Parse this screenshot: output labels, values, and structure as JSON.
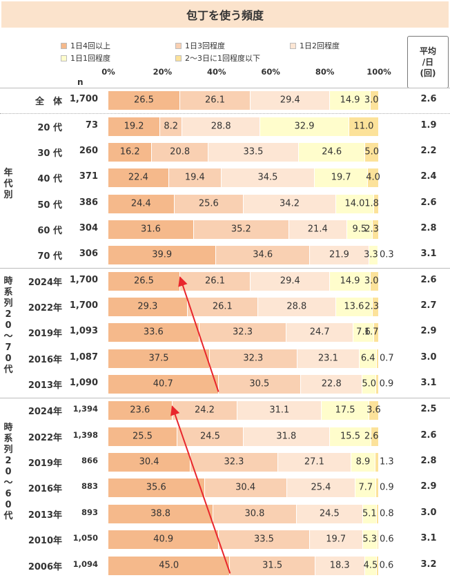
{
  "title": "包丁を使う頻度",
  "legend": [
    {
      "label": "1日4回以上",
      "color": "#f5b98b"
    },
    {
      "label": "1日3回程度",
      "color": "#f9d0b2"
    },
    {
      "label": "1日2回程度",
      "color": "#fde6d4"
    },
    {
      "label": "1日1回程度",
      "color": "#fffdcc"
    },
    {
      "label": "2～3日に1回程度以下",
      "color": "#fce29a"
    }
  ],
  "avg_header": [
    "平均",
    "/日",
    "(回)"
  ],
  "n_header": "n",
  "axis_ticks": [
    "0%",
    "20%",
    "40%",
    "60%",
    "80%",
    "100%"
  ],
  "group_labels": {
    "age": "年代別",
    "ts1": "時系列20～70代",
    "ts2": "時系列20～60代"
  },
  "chart_data": {
    "type": "bar",
    "stacked": true,
    "orientation": "horizontal",
    "title": "包丁を使う頻度",
    "xlim": [
      0,
      100
    ],
    "series_names": [
      "1日4回以上",
      "1日3回程度",
      "1日2回程度",
      "1日1回程度",
      "2～3日に1回程度以下"
    ],
    "rows": [
      {
        "label": "全　体",
        "n": "1,700",
        "values": [
          26.5,
          26.1,
          29.4,
          14.9,
          3.0
        ],
        "labels": [
          "26.5",
          "26.1",
          "29.4",
          "14.9",
          "3.0"
        ],
        "avg": "2.6"
      },
      {
        "label": "20 代",
        "n": "73",
        "values": [
          19.2,
          8.2,
          28.8,
          32.9,
          11.0
        ],
        "labels": [
          "19.2",
          "8.2",
          "28.8",
          "32.9",
          "11.0"
        ],
        "avg": "1.9"
      },
      {
        "label": "30 代",
        "n": "260",
        "values": [
          16.2,
          20.8,
          33.5,
          24.6,
          5.0
        ],
        "labels": [
          "16.2",
          "20.8",
          "33.5",
          "24.6",
          "5.0"
        ],
        "avg": "2.2"
      },
      {
        "label": "40 代",
        "n": "371",
        "values": [
          22.4,
          19.4,
          34.5,
          19.7,
          4.0
        ],
        "labels": [
          "22.4",
          "19.4",
          "34.5",
          "19.7",
          "4.0"
        ],
        "avg": "2.4"
      },
      {
        "label": "50 代",
        "n": "386",
        "values": [
          24.4,
          25.6,
          34.2,
          14.0,
          1.8
        ],
        "labels": [
          "24.4",
          "25.6",
          "34.2",
          "14.0",
          "1.8"
        ],
        "avg": "2.6"
      },
      {
        "label": "60 代",
        "n": "304",
        "values": [
          31.6,
          35.2,
          21.4,
          9.5,
          2.3
        ],
        "labels": [
          "31.6",
          "35.2",
          "21.4",
          "9.5",
          "2.3"
        ],
        "avg": "2.8"
      },
      {
        "label": "70 代",
        "n": "306",
        "values": [
          39.9,
          34.6,
          21.9,
          3.3,
          0.3
        ],
        "labels": [
          "39.9",
          "34.6",
          "21.9",
          "3.3",
          "0.3"
        ],
        "avg": "3.1"
      },
      {
        "label": "2024年",
        "n": "1,700",
        "values": [
          26.5,
          26.1,
          29.4,
          14.9,
          3.0
        ],
        "labels": [
          "26.5",
          "26.1",
          "29.4",
          "14.9",
          "3.0"
        ],
        "avg": "2.6"
      },
      {
        "label": "2022年",
        "n": "1,700",
        "values": [
          29.3,
          26.1,
          28.8,
          13.6,
          2.3
        ],
        "labels": [
          "29.3",
          "26.1",
          "28.8",
          "13.6",
          "2.3"
        ],
        "avg": "2.7"
      },
      {
        "label": "2019年",
        "n": "1,093",
        "values": [
          33.6,
          32.3,
          24.7,
          7.6,
          1.7
        ],
        "labels": [
          "33.6",
          "32.3",
          "24.7",
          "7.6",
          "1.7"
        ],
        "avg": "2.9"
      },
      {
        "label": "2016年",
        "n": "1,087",
        "values": [
          37.5,
          32.3,
          23.1,
          6.4,
          0.7
        ],
        "labels": [
          "37.5",
          "32.3",
          "23.1",
          "6.4",
          "0.7"
        ],
        "avg": "3.0"
      },
      {
        "label": "2013年",
        "n": "1,090",
        "values": [
          40.7,
          30.5,
          22.8,
          5.0,
          0.9
        ],
        "labels": [
          "40.7",
          "30.5",
          "22.8",
          "5.0",
          "0.9"
        ],
        "avg": "3.1"
      },
      {
        "label": "2024年",
        "n": "1,394",
        "values": [
          23.6,
          24.2,
          31.1,
          17.5,
          3.6
        ],
        "labels": [
          "23.6",
          "24.2",
          "31.1",
          "17.5",
          "3.6"
        ],
        "avg": "2.5"
      },
      {
        "label": "2022年",
        "n": "1,398",
        "values": [
          25.5,
          24.5,
          31.8,
          15.5,
          2.6
        ],
        "labels": [
          "25.5",
          "24.5",
          "31.8",
          "15.5",
          "2.6"
        ],
        "avg": "2.6"
      },
      {
        "label": "2019年",
        "n": "866",
        "values": [
          30.4,
          32.3,
          27.1,
          8.9,
          1.3
        ],
        "labels": [
          "30.4",
          "32.3",
          "27.1",
          "8.9",
          "1.3"
        ],
        "avg": "2.8"
      },
      {
        "label": "2016年",
        "n": "883",
        "values": [
          35.6,
          30.4,
          25.4,
          7.7,
          0.9
        ],
        "labels": [
          "35.6",
          "30.4",
          "25.4",
          "7.7",
          "0.9"
        ],
        "avg": "2.9"
      },
      {
        "label": "2013年",
        "n": "893",
        "values": [
          38.8,
          30.8,
          24.5,
          5.1,
          0.8
        ],
        "labels": [
          "38.8",
          "30.8",
          "24.5",
          "5.1",
          "0.8"
        ],
        "avg": "3.0"
      },
      {
        "label": "2010年",
        "n": "1,050",
        "values": [
          40.9,
          33.5,
          19.7,
          5.3,
          0.6
        ],
        "labels": [
          "40.9",
          "33.5",
          "19.7",
          "5.3",
          "0.6"
        ],
        "avg": "3.1"
      },
      {
        "label": "2006年",
        "n": "1,094",
        "values": [
          45.0,
          31.5,
          18.3,
          4.5,
          0.6
        ],
        "labels": [
          "45.0",
          "31.5",
          "18.3",
          "4.5",
          "0.6"
        ],
        "avg": "3.2"
      }
    ],
    "trend_arrows": [
      {
        "from_row": 11,
        "to_row": 7,
        "value_from": 40.7,
        "value_to": 26.5,
        "color": "#e8262c"
      },
      {
        "from_row": 18,
        "to_row": 12,
        "value_from": 45.0,
        "value_to": 23.6,
        "color": "#e8262c"
      }
    ]
  }
}
